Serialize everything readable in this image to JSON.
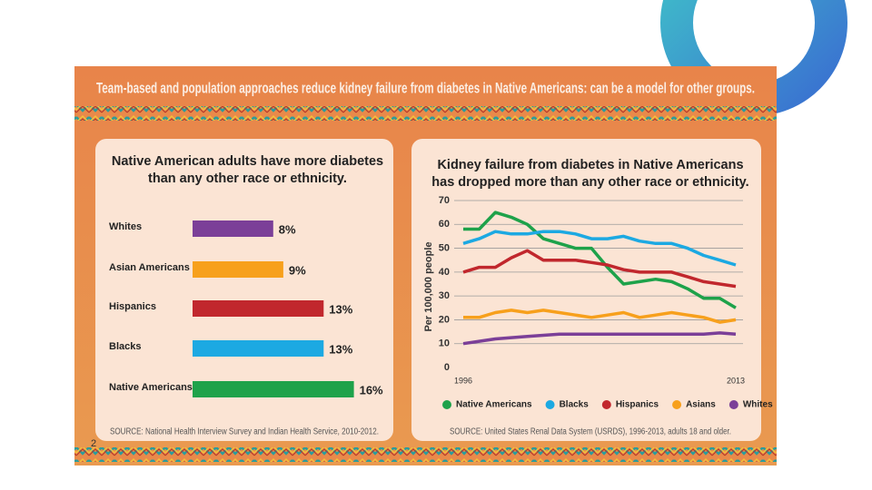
{
  "header": {
    "title": "Team-based and population approaches reduce kidney failure from diabetes in Native Americans: can be a model for other groups."
  },
  "page_number": "2",
  "chart_data": [
    {
      "type": "hbar",
      "title": "Native American adults have more diabetes than any other race or ethnicity.",
      "categories": [
        "Whites",
        "Asian Americans",
        "Hispanics",
        "Blacks",
        "Native Americans"
      ],
      "values": [
        8,
        9,
        13,
        13,
        16
      ],
      "value_labels": [
        "8%",
        "9%",
        "13%",
        "13%",
        "16%"
      ],
      "colors": [
        "#7b3f98",
        "#f7a01c",
        "#c1272d",
        "#1ca9e2",
        "#1ea24a"
      ],
      "source": "SOURCE: National Health Interview Survey and Indian Health Service, 2010-2012."
    },
    {
      "type": "line",
      "title": "Kidney failure from diabetes in Native Americans has dropped more than any other race or ethnicity.",
      "ylabel": "Per 100,000 people",
      "x": [
        1996,
        1997,
        1998,
        1999,
        2000,
        2001,
        2002,
        2003,
        2004,
        2005,
        2006,
        2007,
        2008,
        2009,
        2010,
        2011,
        2012,
        2013
      ],
      "xlim": [
        1996,
        2013
      ],
      "xticks": [
        1996,
        2013
      ],
      "ylim": [
        0,
        70
      ],
      "yticks": [
        0,
        10,
        20,
        30,
        40,
        50,
        60,
        70
      ],
      "grid": true,
      "series": [
        {
          "name": "Native Americans",
          "color": "#1ea24a",
          "values": [
            58,
            58,
            65,
            63,
            60,
            54,
            52,
            50,
            50,
            42,
            35,
            36,
            37,
            36,
            33,
            29,
            29,
            25
          ]
        },
        {
          "name": "Blacks",
          "color": "#1ca9e2",
          "values": [
            52,
            54,
            57,
            56,
            56,
            57,
            57,
            56,
            54,
            54,
            55,
            53,
            52,
            52,
            50,
            47,
            45,
            43
          ]
        },
        {
          "name": "Hispanics",
          "color": "#c1272d",
          "values": [
            40,
            42,
            42,
            46,
            49,
            45,
            45,
            45,
            44,
            43,
            41,
            40,
            40,
            40,
            38,
            36,
            35,
            34
          ]
        },
        {
          "name": "Asians",
          "color": "#f7a01c",
          "values": [
            21,
            21,
            23,
            24,
            23,
            24,
            23,
            22,
            21,
            22,
            23,
            21,
            22,
            23,
            22,
            21,
            19,
            20
          ]
        },
        {
          "name": "Whites",
          "color": "#7b3f98",
          "values": [
            10,
            11,
            12,
            12.5,
            13,
            13.5,
            14,
            14,
            14,
            14,
            14,
            14,
            14,
            14,
            14,
            14,
            14.5,
            14
          ]
        }
      ],
      "source": "SOURCE: United States Renal Data System (USRDS), 1996-2013, adults 18 and older."
    }
  ]
}
